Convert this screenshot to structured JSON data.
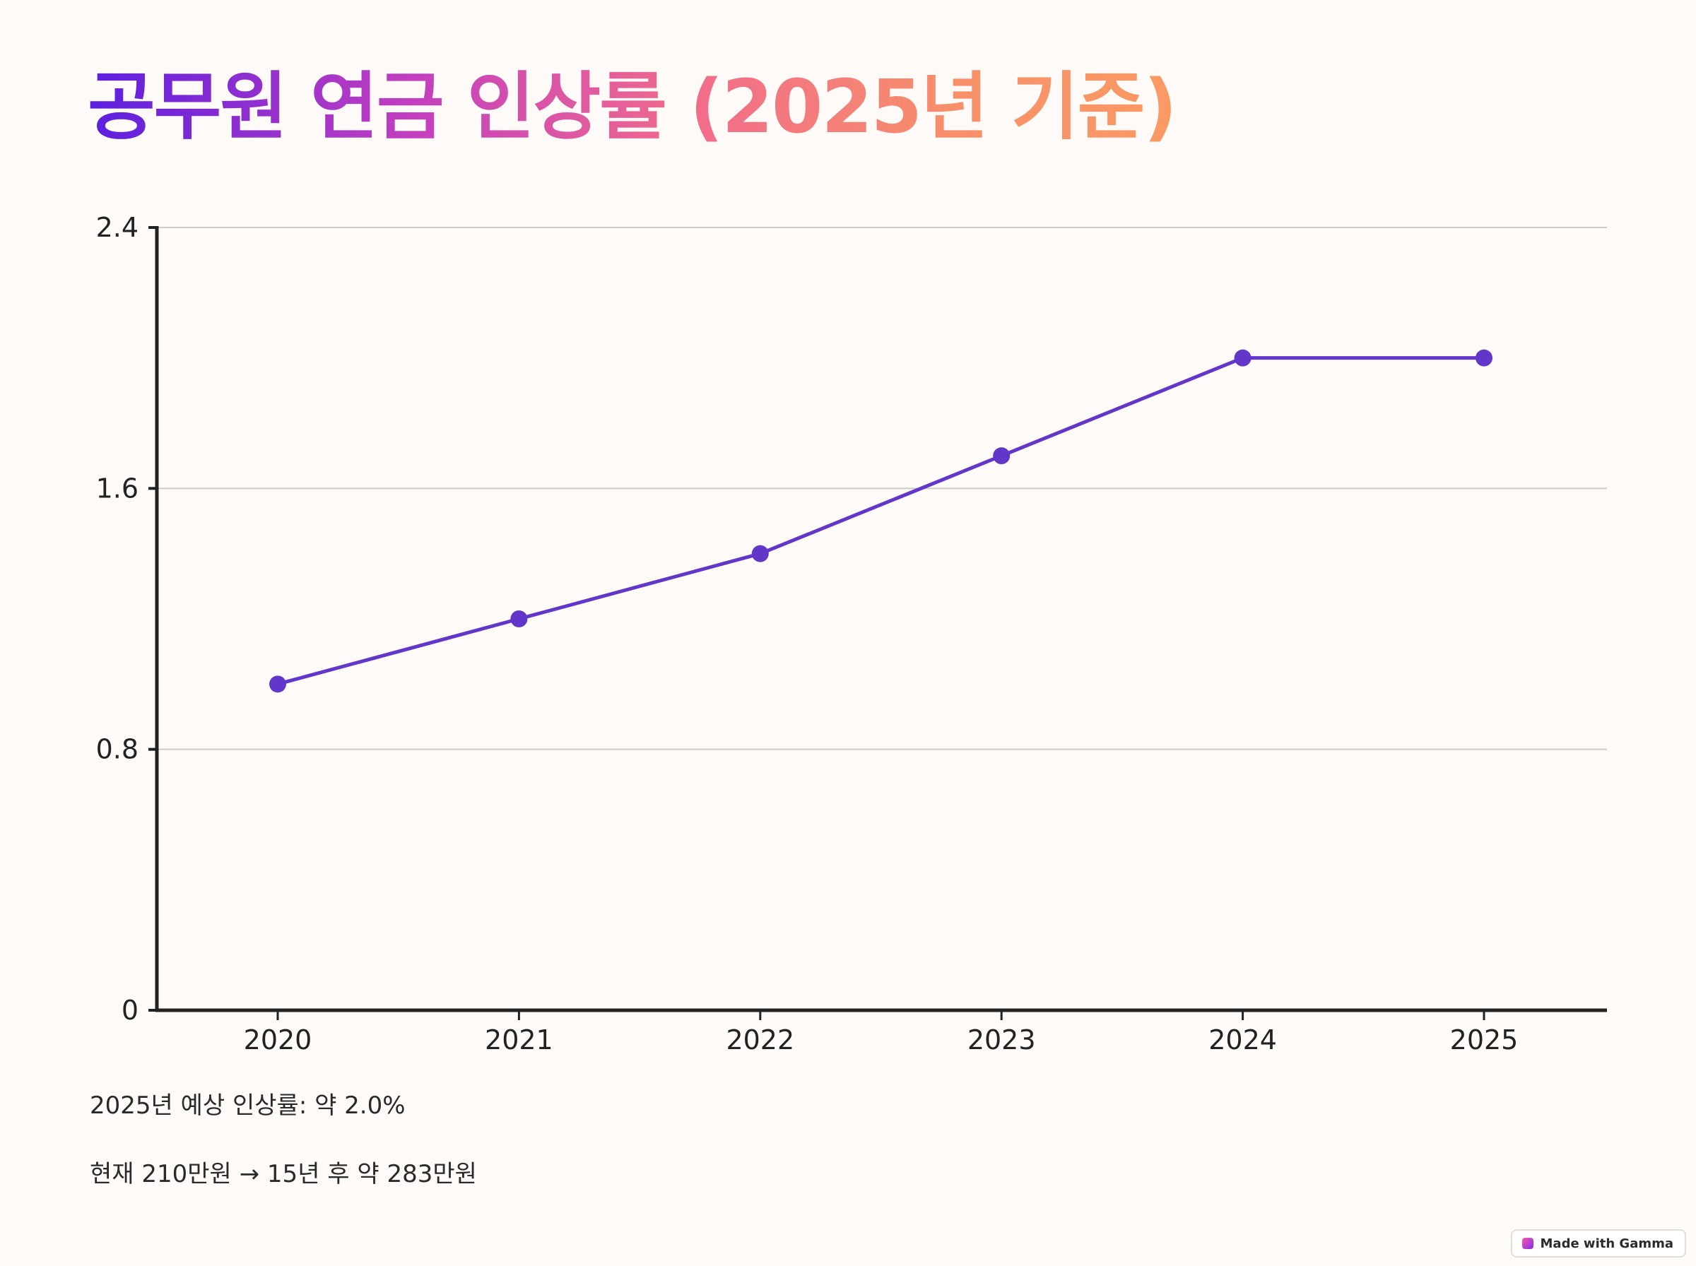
{
  "title": "공무원 연금 인상률 (2025년 기준)",
  "chart_data": {
    "type": "line",
    "title": "공무원 연금 인상률 (2025년 기준)",
    "xlabel": "",
    "ylabel": "",
    "categories": [
      "2020",
      "2021",
      "2022",
      "2023",
      "2024",
      "2025"
    ],
    "values": [
      1.0,
      1.2,
      1.4,
      1.7,
      2.0,
      2.0
    ],
    "ylim": [
      0,
      2.4
    ],
    "yticks": [
      0,
      0.8,
      1.6,
      2.4
    ],
    "ytick_labels": [
      "0",
      "0.8",
      "1.6",
      "2.4"
    ],
    "grid": true,
    "legend": "none",
    "line_color": "#6236c8"
  },
  "notes": {
    "line1": "2025년 예상 인상률: 약 2.0%",
    "line2": "현재 210만원 → 15년 후 약 283만원"
  },
  "badge": {
    "label": "Made with Gamma",
    "icon": "gamma-logo-icon"
  }
}
